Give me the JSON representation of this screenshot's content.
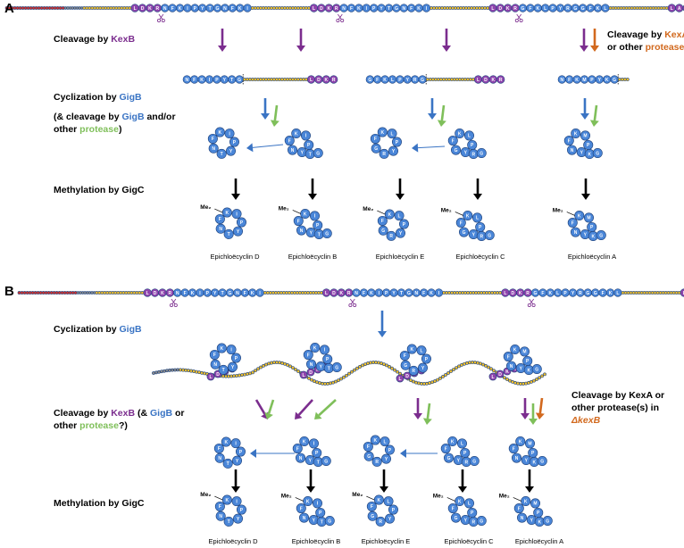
{
  "panels": [
    {
      "letter": "A",
      "steps": {
        "cleavage_line1": [
          {
            "text": "Cleavage by ",
            "color": "#000000"
          },
          {
            "text": "KexB",
            "color": "#7b2d8e"
          }
        ],
        "cleavage_other_line1": [
          {
            "text": "Cleavage by ",
            "color": "#000000"
          },
          {
            "text": "KexA",
            "color": "#d2691e"
          }
        ],
        "cleavage_other_line2": [
          {
            "text": "or other ",
            "color": "#000000"
          },
          {
            "text": "protease",
            "color": "#d2691e"
          }
        ],
        "cyclization_line1": [
          {
            "text": "Cyclization by ",
            "color": "#000000"
          },
          {
            "text": "GigB",
            "color": "#3a74c4"
          }
        ],
        "cyclization_line2": [
          {
            "text": "(& cleavage by ",
            "color": "#000000"
          },
          {
            "text": "GigB",
            "color": "#3a74c4"
          },
          {
            "text": " and/or",
            "color": "#000000"
          }
        ],
        "cyclization_line3": [
          {
            "text": "other ",
            "color": "#000000"
          },
          {
            "text": "protease",
            "color": "#7fbf5a"
          },
          {
            "text": ")",
            "color": "#000000"
          }
        ],
        "methylation": [
          {
            "text": "Methylation by GigC",
            "color": "#000000"
          }
        ]
      },
      "products": [
        "Epichloëcyclin D",
        "Epichloëcyclin B",
        "Epichloëcyclin E",
        "Epichloëcyclin C",
        "Epichloëcyclin A"
      ]
    },
    {
      "letter": "B",
      "steps": {
        "cyclization": [
          {
            "text": "Cyclization by ",
            "color": "#000000"
          },
          {
            "text": "GigB",
            "color": "#3a74c4"
          }
        ],
        "cleavage_line1": [
          {
            "text": "Cleavage by ",
            "color": "#000000"
          },
          {
            "text": "KexB",
            "color": "#7b2d8e"
          },
          {
            "text": " (& ",
            "color": "#000000"
          },
          {
            "text": "GigB",
            "color": "#3a74c4"
          },
          {
            "text": " or",
            "color": "#000000"
          }
        ],
        "cleavage_line2": [
          {
            "text": "other ",
            "color": "#000000"
          },
          {
            "text": "protease",
            "color": "#7fbf5a"
          },
          {
            "text": "?)",
            "color": "#000000"
          }
        ],
        "kexa_line1": [
          {
            "text": "Cleavage by KexA or",
            "color": "#000000"
          }
        ],
        "kexa_line2": [
          {
            "text": "other protease(s) in",
            "color": "#000000"
          }
        ],
        "kexa_line3": [
          {
            "text": "ΔkexB",
            "color": "#d2691e"
          }
        ],
        "methylation": [
          {
            "text": "Methylation by GigC",
            "color": "#000000"
          }
        ]
      },
      "products": [
        "Epichloëcyclin D",
        "Epichloëcyclin B",
        "Epichloëcyclin E",
        "Epichloëcyclin C",
        "Epichloëcyclin A"
      ]
    }
  ],
  "methyl_label": "Me₂",
  "colors": {
    "kexb": "#7b2d8e",
    "gigb": "#3a74c4",
    "protease_green": "#7fbf5a",
    "kexa": "#d2691e",
    "bead_blue": "#4a86d8",
    "bead_purple": "#8e44ad",
    "bead_yellow": "#f2c12e",
    "bead_red": "#d8322c",
    "bead_grey": "#8a8a8a",
    "arrow_black": "#000000"
  },
  "icons": {
    "scissors": "scissors-icon",
    "arrow": "down-arrow-icon"
  },
  "cores": [
    {
      "id": "D",
      "ring": [
        "K",
        "I",
        "P",
        "Y",
        "T",
        "N",
        "F"
      ],
      "tail": []
    },
    {
      "id": "B",
      "ring": [
        "K",
        "I",
        "P",
        "Y",
        "N",
        "F"
      ],
      "tail": [
        "T",
        "G"
      ]
    },
    {
      "id": "E",
      "ring": [
        "K",
        "L",
        "P",
        "Y",
        "R",
        "G",
        "F"
      ],
      "tail": []
    },
    {
      "id": "C",
      "ring": [
        "K",
        "L",
        "P",
        "Y",
        "G",
        "F"
      ],
      "tail": [
        "R",
        "G"
      ]
    },
    {
      "id": "A",
      "ring": [
        "K",
        "M",
        "P",
        "Y",
        "N",
        "F"
      ],
      "tail": [
        "K",
        "G"
      ]
    }
  ],
  "kex_sites": [
    "LDKR",
    "LDKR",
    "LDKR",
    "LAKR"
  ]
}
